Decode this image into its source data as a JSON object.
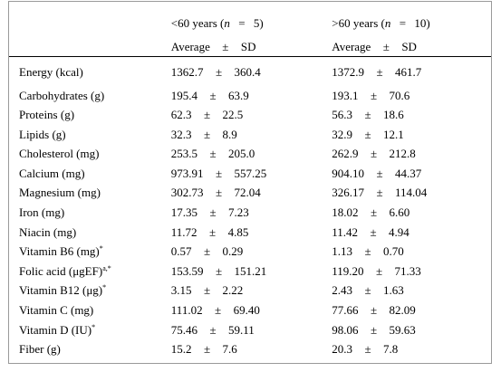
{
  "table": {
    "header": {
      "group1": {
        "label": "<60 years (",
        "n_var": "n",
        "eq": "=",
        "n_val": "5)",
        "sub_avg": "Average",
        "sub_pm": "±",
        "sub_sd": "SD"
      },
      "group2": {
        "label": ">60 years (",
        "n_var": "n",
        "eq": "=",
        "n_val": "10)",
        "sub_avg": "Average",
        "sub_pm": "±",
        "sub_sd": "SD"
      }
    },
    "rows": [
      {
        "name": "Energy (kcal)",
        "sup": "",
        "g1": {
          "avg": "1362.7",
          "pm": "±",
          "sd": "360.4"
        },
        "g2": {
          "avg": "1372.9",
          "pm": "±",
          "sd": "461.7"
        }
      },
      {
        "name": "Carbohydrates (g)",
        "sup": "",
        "g1": {
          "avg": "195.4",
          "pm": "±",
          "sd": "63.9"
        },
        "g2": {
          "avg": "193.1",
          "pm": "±",
          "sd": "70.6"
        }
      },
      {
        "name": "Proteins (g)",
        "sup": "",
        "g1": {
          "avg": "62.3",
          "pm": "±",
          "sd": "22.5"
        },
        "g2": {
          "avg": "56.3",
          "pm": "±",
          "sd": "18.6"
        }
      },
      {
        "name": "Lipids (g)",
        "sup": "",
        "g1": {
          "avg": "32.3",
          "pm": "±",
          "sd": "8.9"
        },
        "g2": {
          "avg": "32.9",
          "pm": "±",
          "sd": "12.1"
        }
      },
      {
        "name": "Cholesterol (mg)",
        "sup": "",
        "g1": {
          "avg": "253.5",
          "pm": "±",
          "sd": "205.0"
        },
        "g2": {
          "avg": "262.9",
          "pm": "±",
          "sd": "212.8"
        }
      },
      {
        "name": "Calcium (mg)",
        "sup": "",
        "g1": {
          "avg": "973.91",
          "pm": "±",
          "sd": "557.25"
        },
        "g2": {
          "avg": "904.10",
          "pm": "±",
          "sd": "44.37"
        }
      },
      {
        "name": "Magnesium (mg)",
        "sup": "",
        "g1": {
          "avg": "302.73",
          "pm": "±",
          "sd": "72.04"
        },
        "g2": {
          "avg": "326.17",
          "pm": "±",
          "sd": "114.04"
        }
      },
      {
        "name": "Iron (mg)",
        "sup": "",
        "g1": {
          "avg": "17.35",
          "pm": "±",
          "sd": "7.23"
        },
        "g2": {
          "avg": "18.02",
          "pm": "±",
          "sd": "6.60"
        }
      },
      {
        "name": "Niacin (mg)",
        "sup": "",
        "g1": {
          "avg": "11.72",
          "pm": "±",
          "sd": "4.85"
        },
        "g2": {
          "avg": "11.42",
          "pm": "±",
          "sd": "4.94"
        }
      },
      {
        "name": "Vitamin B6 (mg)",
        "sup": "*",
        "g1": {
          "avg": "0.57",
          "pm": "±",
          "sd": "0.29"
        },
        "g2": {
          "avg": "1.13",
          "pm": "±",
          "sd": "0.70"
        }
      },
      {
        "name": "Folic acid (μgEF)",
        "sup": "a,*",
        "g1": {
          "avg": "153.59",
          "pm": "±",
          "sd": "151.21"
        },
        "g2": {
          "avg": "119.20",
          "pm": "±",
          "sd": "71.33"
        }
      },
      {
        "name": "Vitamin B12 (μg)",
        "sup": "*",
        "g1": {
          "avg": "3.15",
          "pm": "±",
          "sd": "2.22"
        },
        "g2": {
          "avg": "2.43",
          "pm": "±",
          "sd": "1.63"
        }
      },
      {
        "name": "Vitamin C (mg)",
        "sup": "",
        "g1": {
          "avg": "111.02",
          "pm": "±",
          "sd": "69.40"
        },
        "g2": {
          "avg": "77.66",
          "pm": "±",
          "sd": "82.09"
        }
      },
      {
        "name": "Vitamin D (IU)",
        "sup": "*",
        "g1": {
          "avg": "75.46",
          "pm": "±",
          "sd": "59.11"
        },
        "g2": {
          "avg": "98.06",
          "pm": "±",
          "sd": "59.63"
        }
      },
      {
        "name": "Fiber (g)",
        "sup": "",
        "g1": {
          "avg": "15.2",
          "pm": "±",
          "sd": "7.6"
        },
        "g2": {
          "avg": "20.3",
          "pm": "±",
          "sd": "7.8"
        }
      }
    ]
  }
}
